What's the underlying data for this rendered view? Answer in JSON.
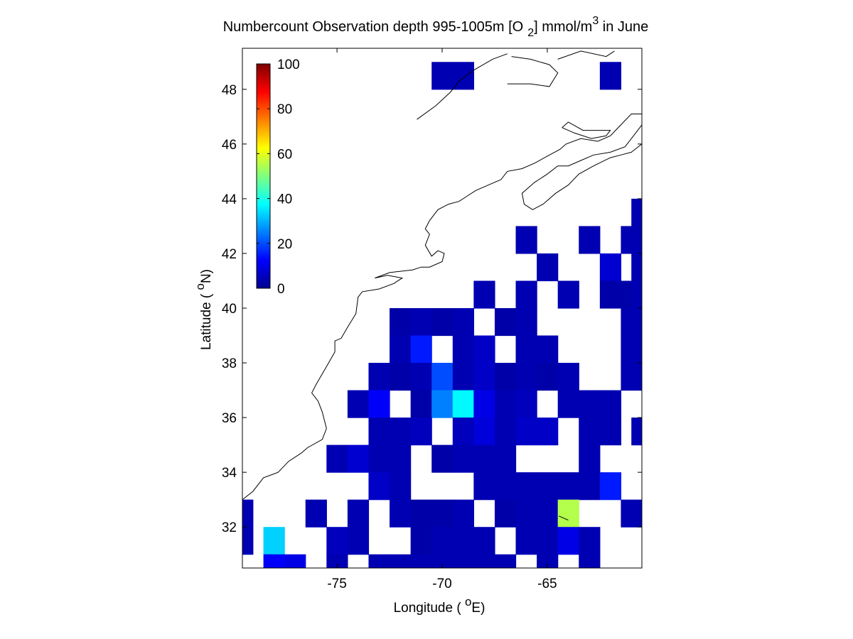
{
  "chart_data": {
    "type": "heatmap",
    "title": {
      "prefix": "Numbercount Observation depth 995-1005m [O",
      "sub": "2",
      "mid": "] mmol/m",
      "sup": "3",
      "suffix": " in June"
    },
    "xlabel": {
      "pre": "Longitude ( ",
      "sup": "o",
      "post": "E)"
    },
    "ylabel": {
      "pre": "Latitude ( ",
      "sup": "o",
      "post": "N)"
    },
    "xlim": [
      -79.5,
      -60.5
    ],
    "ylim": [
      30.5,
      49.5
    ],
    "xticks": [
      -75,
      -70,
      -65
    ],
    "xtick_labels": [
      "-75",
      "-70",
      "-65"
    ],
    "yticks": [
      32,
      34,
      36,
      38,
      40,
      42,
      44,
      46,
      48
    ],
    "ytick_labels": [
      "32",
      "34",
      "36",
      "38",
      "40",
      "42",
      "44",
      "46",
      "48"
    ],
    "colormap": "jet",
    "color_range": [
      0,
      100
    ],
    "colorbar_ticks": [
      0,
      20,
      40,
      60,
      80,
      100
    ],
    "colorbar_labels": [
      "0",
      "20",
      "40",
      "60",
      "80",
      "100"
    ],
    "colorbar_location": "top-left inside axes",
    "cell_size_deg": 1,
    "cells": [
      {
        "lon": -70,
        "lat": 48.5,
        "v": 5
      },
      {
        "lon": -69,
        "lat": 48.5,
        "v": 5
      },
      {
        "lon": -62,
        "lat": 48.5,
        "v": 5
      },
      {
        "lon": -60.5,
        "lat": 43.5,
        "v": 5
      },
      {
        "lon": -66,
        "lat": 42.5,
        "v": 5
      },
      {
        "lon": -63,
        "lat": 42.5,
        "v": 5
      },
      {
        "lon": -61,
        "lat": 42.5,
        "v": 5
      },
      {
        "lon": -60.5,
        "lat": 42.5,
        "v": 5
      },
      {
        "lon": -65,
        "lat": 41.5,
        "v": 5
      },
      {
        "lon": -62,
        "lat": 41.5,
        "v": 8
      },
      {
        "lon": -60.5,
        "lat": 41.5,
        "v": 5
      },
      {
        "lon": -68,
        "lat": 40.5,
        "v": 5
      },
      {
        "lon": -66,
        "lat": 40.5,
        "v": 5
      },
      {
        "lon": -64,
        "lat": 40.5,
        "v": 5
      },
      {
        "lon": -62,
        "lat": 40.5,
        "v": 4
      },
      {
        "lon": -61,
        "lat": 40.5,
        "v": 4
      },
      {
        "lon": -60.5,
        "lat": 40.5,
        "v": 5
      },
      {
        "lon": -72,
        "lat": 39.5,
        "v": 4
      },
      {
        "lon": -71,
        "lat": 39.5,
        "v": 5
      },
      {
        "lon": -70,
        "lat": 39.5,
        "v": 4
      },
      {
        "lon": -69,
        "lat": 39.5,
        "v": 5
      },
      {
        "lon": -67,
        "lat": 39.5,
        "v": 4
      },
      {
        "lon": -66,
        "lat": 39.5,
        "v": 5
      },
      {
        "lon": -61,
        "lat": 39.5,
        "v": 5
      },
      {
        "lon": -72,
        "lat": 38.5,
        "v": 5
      },
      {
        "lon": -71,
        "lat": 38.5,
        "v": 15
      },
      {
        "lon": -69,
        "lat": 38.5,
        "v": 5
      },
      {
        "lon": -68,
        "lat": 38.5,
        "v": 7
      },
      {
        "lon": -66,
        "lat": 38.5,
        "v": 5
      },
      {
        "lon": -65,
        "lat": 38.5,
        "v": 5
      },
      {
        "lon": -61,
        "lat": 38.5,
        "v": 5
      },
      {
        "lon": -60.5,
        "lat": 38.5,
        "v": 5
      },
      {
        "lon": -73,
        "lat": 37.5,
        "v": 5
      },
      {
        "lon": -72,
        "lat": 37.5,
        "v": 4
      },
      {
        "lon": -71,
        "lat": 37.5,
        "v": 5
      },
      {
        "lon": -70,
        "lat": 37.5,
        "v": 20
      },
      {
        "lon": -69,
        "lat": 37.5,
        "v": 5
      },
      {
        "lon": -68,
        "lat": 37.5,
        "v": 7
      },
      {
        "lon": -67,
        "lat": 37.5,
        "v": 4
      },
      {
        "lon": -66,
        "lat": 37.5,
        "v": 5
      },
      {
        "lon": -65,
        "lat": 37.5,
        "v": 4
      },
      {
        "lon": -64,
        "lat": 37.5,
        "v": 5
      },
      {
        "lon": -61,
        "lat": 37.5,
        "v": 5
      },
      {
        "lon": -74,
        "lat": 36.5,
        "v": 5
      },
      {
        "lon": -73,
        "lat": 36.5,
        "v": 12
      },
      {
        "lon": -71,
        "lat": 36.5,
        "v": 4
      },
      {
        "lon": -70,
        "lat": 36.5,
        "v": 25
      },
      {
        "lon": -69,
        "lat": 36.5,
        "v": 37
      },
      {
        "lon": -68,
        "lat": 36.5,
        "v": 10
      },
      {
        "lon": -67,
        "lat": 36.5,
        "v": 5
      },
      {
        "lon": -66,
        "lat": 36.5,
        "v": 6
      },
      {
        "lon": -64,
        "lat": 36.5,
        "v": 5
      },
      {
        "lon": -63,
        "lat": 36.5,
        "v": 5
      },
      {
        "lon": -62,
        "lat": 36.5,
        "v": 5
      },
      {
        "lon": -73,
        "lat": 35.5,
        "v": 5
      },
      {
        "lon": -72,
        "lat": 35.5,
        "v": 5
      },
      {
        "lon": -71,
        "lat": 35.5,
        "v": 6
      },
      {
        "lon": -69,
        "lat": 35.5,
        "v": 6
      },
      {
        "lon": -68,
        "lat": 35.5,
        "v": 9
      },
      {
        "lon": -67,
        "lat": 35.5,
        "v": 5
      },
      {
        "lon": -66,
        "lat": 35.5,
        "v": 7
      },
      {
        "lon": -65,
        "lat": 35.5,
        "v": 7
      },
      {
        "lon": -63,
        "lat": 35.5,
        "v": 5
      },
      {
        "lon": -62,
        "lat": 35.5,
        "v": 5
      },
      {
        "lon": -60.5,
        "lat": 35.5,
        "v": 5
      },
      {
        "lon": -75,
        "lat": 34.5,
        "v": 5
      },
      {
        "lon": -74,
        "lat": 34.5,
        "v": 8
      },
      {
        "lon": -73,
        "lat": 34.5,
        "v": 5
      },
      {
        "lon": -72,
        "lat": 34.5,
        "v": 5
      },
      {
        "lon": -70,
        "lat": 34.5,
        "v": 4
      },
      {
        "lon": -69,
        "lat": 34.5,
        "v": 5
      },
      {
        "lon": -68,
        "lat": 34.5,
        "v": 5
      },
      {
        "lon": -67,
        "lat": 34.5,
        "v": 5
      },
      {
        "lon": -63,
        "lat": 34.5,
        "v": 5
      },
      {
        "lon": -73,
        "lat": 33.5,
        "v": 7
      },
      {
        "lon": -72,
        "lat": 33.5,
        "v": 5
      },
      {
        "lon": -68,
        "lat": 33.5,
        "v": 5
      },
      {
        "lon": -67,
        "lat": 33.5,
        "v": 5
      },
      {
        "lon": -66,
        "lat": 33.5,
        "v": 5
      },
      {
        "lon": -65,
        "lat": 33.5,
        "v": 5
      },
      {
        "lon": -64,
        "lat": 33.5,
        "v": 5
      },
      {
        "lon": -63,
        "lat": 33.5,
        "v": 5
      },
      {
        "lon": -62,
        "lat": 33.5,
        "v": 15
      },
      {
        "lon": -79.5,
        "lat": 32.5,
        "v": 5
      },
      {
        "lon": -76,
        "lat": 32.5,
        "v": 5
      },
      {
        "lon": -74,
        "lat": 32.5,
        "v": 5
      },
      {
        "lon": -72,
        "lat": 32.5,
        "v": 5
      },
      {
        "lon": -71,
        "lat": 32.5,
        "v": 4
      },
      {
        "lon": -70,
        "lat": 32.5,
        "v": 4
      },
      {
        "lon": -69,
        "lat": 32.5,
        "v": 5
      },
      {
        "lon": -67,
        "lat": 32.5,
        "v": 4
      },
      {
        "lon": -66,
        "lat": 32.5,
        "v": 5
      },
      {
        "lon": -65,
        "lat": 32.5,
        "v": 5
      },
      {
        "lon": -64,
        "lat": 32.5,
        "v": 55
      },
      {
        "lon": -61,
        "lat": 32.5,
        "v": 5
      },
      {
        "lon": -79.5,
        "lat": 31.5,
        "v": 5
      },
      {
        "lon": -78,
        "lat": 31.5,
        "v": 33
      },
      {
        "lon": -75,
        "lat": 31.5,
        "v": 6
      },
      {
        "lon": -74,
        "lat": 31.5,
        "v": 5
      },
      {
        "lon": -71,
        "lat": 31.5,
        "v": 4
      },
      {
        "lon": -70,
        "lat": 31.5,
        "v": 5
      },
      {
        "lon": -69,
        "lat": 31.5,
        "v": 5
      },
      {
        "lon": -68,
        "lat": 31.5,
        "v": 5
      },
      {
        "lon": -66,
        "lat": 31.5,
        "v": 5
      },
      {
        "lon": -65,
        "lat": 31.5,
        "v": 5
      },
      {
        "lon": -64,
        "lat": 31.5,
        "v": 10
      },
      {
        "lon": -63,
        "lat": 31.5,
        "v": 5
      },
      {
        "lon": -78,
        "lat": 30.5,
        "v": 12
      },
      {
        "lon": -77,
        "lat": 30.5,
        "v": 10
      },
      {
        "lon": -75,
        "lat": 30.5,
        "v": 5
      },
      {
        "lon": -73,
        "lat": 30.5,
        "v": 5
      },
      {
        "lon": -72,
        "lat": 30.5,
        "v": 5
      },
      {
        "lon": -71,
        "lat": 30.5,
        "v": 5
      },
      {
        "lon": -70,
        "lat": 30.5,
        "v": 5
      },
      {
        "lon": -69,
        "lat": 30.5,
        "v": 5
      },
      {
        "lon": -68,
        "lat": 30.5,
        "v": 5
      },
      {
        "lon": -67,
        "lat": 30.5,
        "v": 5
      },
      {
        "lon": -65,
        "lat": 30.5,
        "v": 5
      },
      {
        "lon": -63,
        "lat": 30.5,
        "v": 5
      }
    ],
    "coastline": [
      [
        [
          -79.5,
          33.0
        ],
        [
          -79.0,
          33.3
        ],
        [
          -78.5,
          33.8
        ],
        [
          -77.8,
          34.0
        ],
        [
          -77.3,
          34.4
        ],
        [
          -76.7,
          34.7
        ],
        [
          -76.4,
          34.9
        ],
        [
          -75.7,
          35.2
        ],
        [
          -75.5,
          35.6
        ],
        [
          -75.7,
          36.2
        ],
        [
          -75.9,
          36.6
        ],
        [
          -76.2,
          36.9
        ],
        [
          -76.0,
          37.2
        ],
        [
          -75.7,
          37.6
        ],
        [
          -75.4,
          38.0
        ],
        [
          -75.1,
          38.4
        ],
        [
          -75.1,
          38.8
        ],
        [
          -74.8,
          38.9
        ],
        [
          -74.5,
          39.3
        ],
        [
          -74.1,
          39.8
        ],
        [
          -74.0,
          40.4
        ],
        [
          -73.8,
          40.6
        ],
        [
          -73.0,
          40.7
        ],
        [
          -72.3,
          40.9
        ],
        [
          -71.9,
          41.1
        ],
        [
          -72.6,
          41.2
        ],
        [
          -73.2,
          41.1
        ],
        [
          -72.5,
          41.3
        ],
        [
          -71.4,
          41.4
        ],
        [
          -71.0,
          41.5
        ],
        [
          -70.6,
          41.5
        ],
        [
          -70.0,
          41.7
        ],
        [
          -69.9,
          42.0
        ],
        [
          -70.2,
          42.1
        ],
        [
          -70.5,
          41.9
        ],
        [
          -70.8,
          42.3
        ],
        [
          -70.6,
          42.7
        ],
        [
          -70.8,
          42.9
        ],
        [
          -70.6,
          43.2
        ],
        [
          -70.2,
          43.6
        ],
        [
          -69.7,
          43.8
        ],
        [
          -69.2,
          43.9
        ],
        [
          -68.8,
          44.1
        ],
        [
          -68.4,
          44.3
        ],
        [
          -67.8,
          44.5
        ],
        [
          -67.2,
          44.7
        ],
        [
          -66.9,
          45.0
        ],
        [
          -66.2,
          45.1
        ],
        [
          -65.6,
          45.3
        ],
        [
          -64.9,
          45.6
        ],
        [
          -64.4,
          45.8
        ],
        [
          -64.1,
          46.0
        ],
        [
          -63.4,
          46.2
        ],
        [
          -62.6,
          46.1
        ],
        [
          -62.0,
          46.3
        ],
        [
          -61.5,
          46.7
        ],
        [
          -61.0,
          47.1
        ],
        [
          -60.5,
          47.1
        ]
      ],
      [
        [
          -60.5,
          46.0
        ],
        [
          -61.0,
          45.7
        ],
        [
          -61.5,
          45.6
        ],
        [
          -62.0,
          45.5
        ],
        [
          -62.8,
          45.2
        ],
        [
          -63.5,
          44.9
        ],
        [
          -64.0,
          44.5
        ],
        [
          -64.6,
          44.2
        ],
        [
          -65.2,
          43.8
        ],
        [
          -65.7,
          43.6
        ],
        [
          -66.1,
          43.8
        ],
        [
          -66.2,
          44.2
        ],
        [
          -65.6,
          44.6
        ],
        [
          -65.0,
          44.9
        ],
        [
          -64.5,
          45.2
        ],
        [
          -64.0,
          45.2
        ],
        [
          -63.4,
          45.4
        ],
        [
          -62.8,
          45.6
        ],
        [
          -62.0,
          45.7
        ],
        [
          -61.3,
          45.9
        ],
        [
          -60.9,
          46.3
        ],
        [
          -60.5,
          46.7
        ]
      ],
      [
        [
          -64.3,
          46.6
        ],
        [
          -63.7,
          46.4
        ],
        [
          -62.9,
          46.2
        ],
        [
          -62.2,
          46.3
        ],
        [
          -62.0,
          46.5
        ],
        [
          -62.7,
          46.5
        ],
        [
          -63.3,
          46.5
        ],
        [
          -64.0,
          46.8
        ],
        [
          -64.3,
          46.6
        ]
      ],
      [
        [
          -71.2,
          46.9
        ],
        [
          -70.3,
          47.4
        ],
        [
          -69.6,
          47.9
        ],
        [
          -69.2,
          48.3
        ],
        [
          -68.5,
          48.7
        ],
        [
          -67.6,
          49.1
        ],
        [
          -66.9,
          49.3
        ]
      ],
      [
        [
          -66.9,
          48.2
        ],
        [
          -65.8,
          48.2
        ],
        [
          -64.9,
          48.1
        ],
        [
          -64.5,
          48.6
        ],
        [
          -64.9,
          48.9
        ],
        [
          -65.8,
          49.1
        ],
        [
          -66.7,
          49.2
        ]
      ],
      [
        [
          -64.5,
          49.1
        ],
        [
          -63.4,
          49.4
        ],
        [
          -62.2,
          49.2
        ],
        [
          -61.8,
          49.4
        ]
      ],
      [
        [
          -64.0,
          32.25
        ],
        [
          -64.45,
          32.4
        ]
      ]
    ]
  }
}
